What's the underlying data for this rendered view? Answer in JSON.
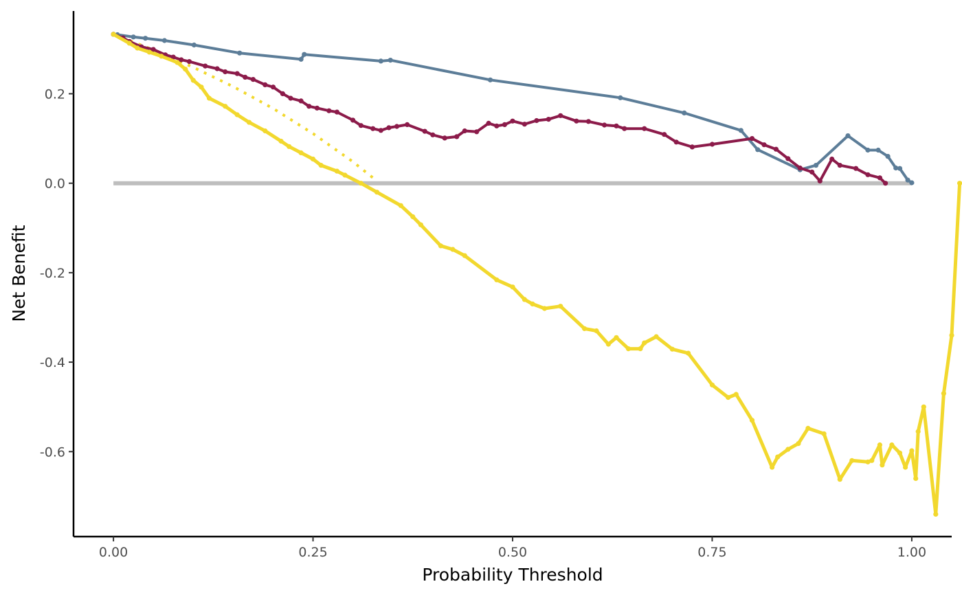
{
  "chart_data": {
    "type": "line",
    "xlabel": "Probability Threshold",
    "ylabel": "Net Benefit",
    "xlim": [
      -0.05,
      1.05
    ],
    "ylim": [
      -0.79,
      0.385
    ],
    "x_ticks": [
      0,
      0.25,
      0.5,
      0.75,
      1
    ],
    "x_tick_labels": [
      "0.00",
      "0.25",
      "0.50",
      "0.75",
      "1.00"
    ],
    "y_ticks": [
      0.2,
      0,
      -0.2,
      -0.4,
      -0.6
    ],
    "y_tick_labels": [
      "0.2",
      "0.0",
      "-0.2",
      "-0.4",
      "-0.6"
    ],
    "grid": false,
    "legend": "none",
    "series": [
      {
        "color": "#bebebe",
        "style": "solid",
        "markers": false,
        "width": 6,
        "points": [
          [
            0,
            0
          ],
          [
            1,
            0
          ]
        ]
      },
      {
        "color": "#f2d82e",
        "style": "dotted",
        "markers": false,
        "width": 4,
        "points": [
          [
            0,
            0.333
          ],
          [
            0.05,
            0.298
          ],
          [
            0.1,
            0.259
          ],
          [
            0.15,
            0.216
          ],
          [
            0.2,
            0.167
          ],
          [
            0.25,
            0.111
          ],
          [
            0.3,
            0.048
          ],
          [
            0.33,
            0.005
          ]
        ]
      },
      {
        "color": "#5c7d98",
        "style": "solid",
        "markers": true,
        "width": 4,
        "points": [
          [
            0,
            0.333
          ],
          [
            0.005,
            0.332
          ],
          [
            0.025,
            0.327
          ],
          [
            0.04,
            0.324
          ],
          [
            0.064,
            0.319
          ],
          [
            0.101,
            0.309
          ],
          [
            0.158,
            0.291
          ],
          [
            0.235,
            0.277
          ],
          [
            0.239,
            0.288
          ],
          [
            0.335,
            0.273
          ],
          [
            0.347,
            0.275
          ],
          [
            0.472,
            0.231
          ],
          [
            0.635,
            0.191
          ],
          [
            0.715,
            0.157
          ],
          [
            0.786,
            0.118
          ],
          [
            0.807,
            0.075
          ],
          [
            0.86,
            0.03
          ],
          [
            0.88,
            0.04
          ],
          [
            0.92,
            0.106
          ],
          [
            0.945,
            0.074
          ],
          [
            0.958,
            0.074
          ],
          [
            0.97,
            0.06
          ],
          [
            0.98,
            0.034
          ],
          [
            0.985,
            0.033
          ],
          [
            0.995,
            0.007
          ],
          [
            1.0,
            0.001
          ]
        ]
      },
      {
        "color": "#8c1b4a",
        "style": "solid",
        "markers": true,
        "width": 4,
        "points": [
          [
            0,
            0.333
          ],
          [
            0.012,
            0.325
          ],
          [
            0.02,
            0.317
          ],
          [
            0.035,
            0.305
          ],
          [
            0.05,
            0.299
          ],
          [
            0.065,
            0.287
          ],
          [
            0.075,
            0.282
          ],
          [
            0.085,
            0.276
          ],
          [
            0.095,
            0.272
          ],
          [
            0.115,
            0.262
          ],
          [
            0.13,
            0.256
          ],
          [
            0.14,
            0.249
          ],
          [
            0.155,
            0.245
          ],
          [
            0.165,
            0.237
          ],
          [
            0.175,
            0.232
          ],
          [
            0.19,
            0.22
          ],
          [
            0.2,
            0.215
          ],
          [
            0.212,
            0.2
          ],
          [
            0.222,
            0.19
          ],
          [
            0.235,
            0.184
          ],
          [
            0.245,
            0.172
          ],
          [
            0.255,
            0.168
          ],
          [
            0.27,
            0.162
          ],
          [
            0.28,
            0.159
          ],
          [
            0.3,
            0.141
          ],
          [
            0.31,
            0.129
          ],
          [
            0.325,
            0.122
          ],
          [
            0.335,
            0.118
          ],
          [
            0.345,
            0.124
          ],
          [
            0.355,
            0.127
          ],
          [
            0.368,
            0.131
          ],
          [
            0.39,
            0.116
          ],
          [
            0.4,
            0.108
          ],
          [
            0.415,
            0.101
          ],
          [
            0.43,
            0.104
          ],
          [
            0.44,
            0.117
          ],
          [
            0.455,
            0.115
          ],
          [
            0.47,
            0.134
          ],
          [
            0.48,
            0.128
          ],
          [
            0.49,
            0.131
          ],
          [
            0.5,
            0.139
          ],
          [
            0.515,
            0.132
          ],
          [
            0.53,
            0.14
          ],
          [
            0.545,
            0.143
          ],
          [
            0.56,
            0.151
          ],
          [
            0.58,
            0.139
          ],
          [
            0.595,
            0.138
          ],
          [
            0.615,
            0.13
          ],
          [
            0.63,
            0.128
          ],
          [
            0.64,
            0.122
          ],
          [
            0.665,
            0.122
          ],
          [
            0.69,
            0.109
          ],
          [
            0.705,
            0.092
          ],
          [
            0.725,
            0.081
          ],
          [
            0.75,
            0.087
          ],
          [
            0.8,
            0.1
          ],
          [
            0.815,
            0.086
          ],
          [
            0.83,
            0.076
          ],
          [
            0.845,
            0.055
          ],
          [
            0.86,
            0.034
          ],
          [
            0.875,
            0.025
          ],
          [
            0.885,
            0.005
          ],
          [
            0.9,
            0.054
          ],
          [
            0.91,
            0.04
          ],
          [
            0.93,
            0.033
          ],
          [
            0.945,
            0.019
          ],
          [
            0.96,
            0.012
          ],
          [
            0.967,
            0.0
          ]
        ]
      },
      {
        "color": "#f2d82e",
        "style": "solid",
        "markers": true,
        "width": 5,
        "points": [
          [
            0,
            0.333
          ],
          [
            0.02,
            0.313
          ],
          [
            0.03,
            0.302
          ],
          [
            0.045,
            0.293
          ],
          [
            0.06,
            0.284
          ],
          [
            0.08,
            0.27
          ],
          [
            0.09,
            0.255
          ],
          [
            0.1,
            0.23
          ],
          [
            0.11,
            0.215
          ],
          [
            0.12,
            0.19
          ],
          [
            0.14,
            0.172
          ],
          [
            0.155,
            0.153
          ],
          [
            0.17,
            0.136
          ],
          [
            0.19,
            0.117
          ],
          [
            0.21,
            0.094
          ],
          [
            0.22,
            0.082
          ],
          [
            0.235,
            0.068
          ],
          [
            0.25,
            0.054
          ],
          [
            0.26,
            0.04
          ],
          [
            0.28,
            0.027
          ],
          [
            0.29,
            0.018
          ],
          [
            0.31,
            0.0
          ],
          [
            0.33,
            -0.02
          ],
          [
            0.36,
            -0.05
          ],
          [
            0.375,
            -0.075
          ],
          [
            0.385,
            -0.093
          ],
          [
            0.41,
            -0.14
          ],
          [
            0.425,
            -0.148
          ],
          [
            0.44,
            -0.162
          ],
          [
            0.48,
            -0.216
          ],
          [
            0.5,
            -0.232
          ],
          [
            0.515,
            -0.26
          ],
          [
            0.525,
            -0.27
          ],
          [
            0.54,
            -0.28
          ],
          [
            0.56,
            -0.275
          ],
          [
            0.59,
            -0.325
          ],
          [
            0.605,
            -0.33
          ],
          [
            0.62,
            -0.36
          ],
          [
            0.63,
            -0.345
          ],
          [
            0.645,
            -0.37
          ],
          [
            0.66,
            -0.37
          ],
          [
            0.665,
            -0.357
          ],
          [
            0.68,
            -0.343
          ],
          [
            0.7,
            -0.371
          ],
          [
            0.72,
            -0.38
          ],
          [
            0.75,
            -0.451
          ],
          [
            0.77,
            -0.479
          ],
          [
            0.78,
            -0.472
          ],
          [
            0.8,
            -0.53
          ],
          [
            0.825,
            -0.635
          ],
          [
            0.832,
            -0.612
          ],
          [
            0.845,
            -0.595
          ],
          [
            0.858,
            -0.582
          ],
          [
            0.87,
            -0.548
          ],
          [
            0.89,
            -0.56
          ],
          [
            0.91,
            -0.662
          ],
          [
            0.925,
            -0.62
          ],
          [
            0.945,
            -0.623
          ],
          [
            0.95,
            -0.62
          ],
          [
            0.96,
            -0.585
          ],
          [
            0.963,
            -0.63
          ],
          [
            0.975,
            -0.585
          ],
          [
            0.985,
            -0.603
          ],
          [
            0.992,
            -0.635
          ],
          [
            1.0,
            -0.598
          ],
          [
            1.005,
            -0.66
          ],
          [
            1.008,
            -0.555
          ],
          [
            1.015,
            -0.5
          ],
          [
            1.03,
            -0.74
          ],
          [
            1.04,
            -0.47
          ],
          [
            1.05,
            -0.34
          ],
          [
            1.06,
            0.0
          ]
        ]
      }
    ]
  }
}
